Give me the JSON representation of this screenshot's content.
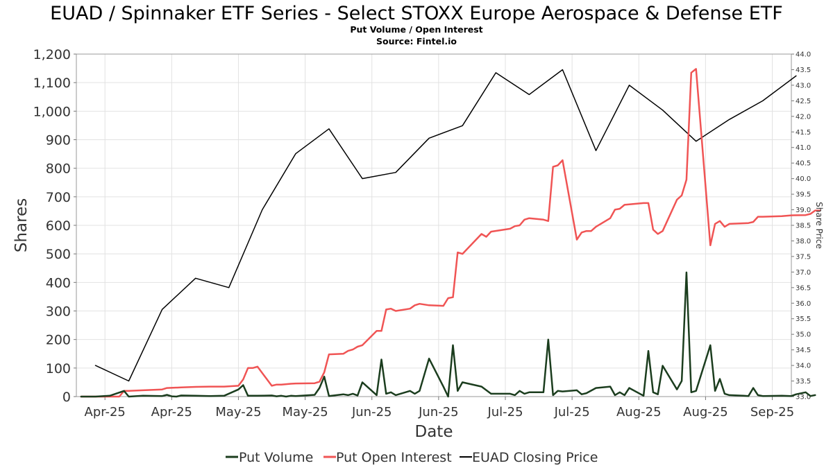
{
  "chart_data": {
    "type": "line",
    "title": "EUAD / Spinnaker ETF Series - Select STOXX Europe Aerospace & Defense ETF",
    "subtitle": "Put Volume / Open Interest",
    "source": "Source: Fintel.io",
    "xlabel": "Date",
    "ylabel": "Shares",
    "y2label": "Share Price",
    "ylim": [
      0,
      1200
    ],
    "y2lim": [
      33.0,
      44.0
    ],
    "yticks": [
      "0",
      "100",
      "200",
      "300",
      "400",
      "500",
      "600",
      "700",
      "800",
      "900",
      "1,000",
      "1,100",
      "1,200"
    ],
    "y2ticks": [
      "33.0",
      "33.5",
      "34.0",
      "34.5",
      "35.0",
      "35.5",
      "36.0",
      "36.5",
      "37.0",
      "37.5",
      "38.0",
      "38.5",
      "39.0",
      "39.5",
      "40.0",
      "40.5",
      "41.0",
      "41.5",
      "42.0",
      "42.5",
      "43.0",
      "43.5",
      "44.0"
    ],
    "xticks": [
      {
        "label": "Apr-25",
        "date": "2025-04-06"
      },
      {
        "label": "Apr-25",
        "date": "2025-04-20"
      },
      {
        "label": "May-25",
        "date": "2025-05-04"
      },
      {
        "label": "May-25",
        "date": "2025-05-18"
      },
      {
        "label": "Jun-25",
        "date": "2025-06-01"
      },
      {
        "label": "Jun-25",
        "date": "2025-06-15"
      },
      {
        "label": "Jul-25",
        "date": "2025-06-29"
      },
      {
        "label": "Jul-25",
        "date": "2025-07-13"
      },
      {
        "label": "Aug-25",
        "date": "2025-07-27"
      },
      {
        "label": "Aug-25",
        "date": "2025-08-10"
      },
      {
        "label": "Sep-25",
        "date": "2025-08-24"
      }
    ],
    "xlim": [
      "2025-03-31",
      "2025-08-28"
    ],
    "grid": true,
    "legend_position": "bottom",
    "series": [
      {
        "name": "Put Volume",
        "color": "#1b3d1e",
        "axis": "left",
        "points": [
          [
            "2025-04-01",
            0
          ],
          [
            "2025-04-04",
            0
          ],
          [
            "2025-04-07",
            3
          ],
          [
            "2025-04-10",
            20
          ],
          [
            "2025-04-11",
            0
          ],
          [
            "2025-04-14",
            3
          ],
          [
            "2025-04-18",
            2
          ],
          [
            "2025-04-19",
            6
          ],
          [
            "2025-04-20",
            1
          ],
          [
            "2025-04-21",
            0
          ],
          [
            "2025-04-22",
            4
          ],
          [
            "2025-04-25",
            3
          ],
          [
            "2025-04-28",
            2
          ],
          [
            "2025-05-01",
            3
          ],
          [
            "2025-05-04",
            25
          ],
          [
            "2025-05-05",
            40
          ],
          [
            "2025-05-06",
            3
          ],
          [
            "2025-05-08",
            3
          ],
          [
            "2025-05-11",
            4
          ],
          [
            "2025-05-12",
            1
          ],
          [
            "2025-05-13",
            3
          ],
          [
            "2025-05-14",
            0
          ],
          [
            "2025-05-15",
            3
          ],
          [
            "2025-05-16",
            2
          ],
          [
            "2025-05-20",
            6
          ],
          [
            "2025-05-21",
            30
          ],
          [
            "2025-05-22",
            70
          ],
          [
            "2025-05-23",
            2
          ],
          [
            "2025-05-26",
            8
          ],
          [
            "2025-05-27",
            5
          ],
          [
            "2025-05-28",
            10
          ],
          [
            "2025-05-29",
            4
          ],
          [
            "2025-05-30",
            50
          ],
          [
            "2025-06-02",
            5
          ],
          [
            "2025-06-03",
            130
          ],
          [
            "2025-06-04",
            10
          ],
          [
            "2025-06-05",
            15
          ],
          [
            "2025-06-06",
            5
          ],
          [
            "2025-06-09",
            20
          ],
          [
            "2025-06-10",
            10
          ],
          [
            "2025-06-11",
            20
          ],
          [
            "2025-06-13",
            133
          ],
          [
            "2025-06-16",
            35
          ],
          [
            "2025-06-17",
            0
          ],
          [
            "2025-06-18",
            180
          ],
          [
            "2025-06-19",
            20
          ],
          [
            "2025-06-20",
            50
          ],
          [
            "2025-06-24",
            35
          ],
          [
            "2025-06-26",
            10
          ],
          [
            "2025-06-30",
            10
          ],
          [
            "2025-07-01",
            5
          ],
          [
            "2025-07-02",
            20
          ],
          [
            "2025-07-03",
            10
          ],
          [
            "2025-07-04",
            15
          ],
          [
            "2025-07-07",
            15
          ],
          [
            "2025-07-08",
            200
          ],
          [
            "2025-07-09",
            5
          ],
          [
            "2025-07-10",
            20
          ],
          [
            "2025-07-11",
            18
          ],
          [
            "2025-07-14",
            22
          ],
          [
            "2025-07-15",
            8
          ],
          [
            "2025-07-16",
            12
          ],
          [
            "2025-07-18",
            30
          ],
          [
            "2025-07-21",
            35
          ],
          [
            "2025-07-22",
            5
          ],
          [
            "2025-07-23",
            15
          ],
          [
            "2025-07-24",
            5
          ],
          [
            "2025-07-25",
            30
          ],
          [
            "2025-07-28",
            3
          ],
          [
            "2025-07-29",
            160
          ],
          [
            "2025-07-30",
            15
          ],
          [
            "2025-07-31",
            8
          ],
          [
            "2025-08-01",
            108
          ],
          [
            "2025-08-04",
            25
          ],
          [
            "2025-08-05",
            55
          ],
          [
            "2025-08-06",
            435
          ],
          [
            "2025-08-07",
            15
          ],
          [
            "2025-08-08",
            20
          ],
          [
            "2025-08-11",
            180
          ],
          [
            "2025-08-12",
            20
          ],
          [
            "2025-08-13",
            62
          ],
          [
            "2025-08-14",
            10
          ],
          [
            "2025-08-15",
            5
          ],
          [
            "2025-08-18",
            3
          ],
          [
            "2025-08-19",
            2
          ],
          [
            "2025-08-20",
            30
          ],
          [
            "2025-08-21",
            5
          ],
          [
            "2025-08-22",
            2
          ],
          [
            "2025-08-26",
            3
          ],
          [
            "2025-08-28",
            2
          ],
          [
            "2025-08-29",
            8
          ],
          [
            "2025-08-31",
            15
          ],
          [
            "2025-09-01",
            2
          ],
          [
            "2025-09-02",
            5
          ]
        ]
      },
      {
        "name": "Put Open Interest",
        "color": "#f05454",
        "axis": "left",
        "points": [
          [
            "2025-04-01",
            0
          ],
          [
            "2025-04-09",
            0
          ],
          [
            "2025-04-10",
            20
          ],
          [
            "2025-04-11",
            20
          ],
          [
            "2025-04-14",
            22
          ],
          [
            "2025-04-18",
            25
          ],
          [
            "2025-04-19",
            30
          ],
          [
            "2025-04-22",
            32
          ],
          [
            "2025-04-25",
            34
          ],
          [
            "2025-04-28",
            35
          ],
          [
            "2025-05-01",
            35
          ],
          [
            "2025-05-04",
            38
          ],
          [
            "2025-05-05",
            60
          ],
          [
            "2025-05-06",
            100
          ],
          [
            "2025-05-07",
            100
          ],
          [
            "2025-05-08",
            105
          ],
          [
            "2025-05-11",
            38
          ],
          [
            "2025-05-12",
            42
          ],
          [
            "2025-05-13",
            42
          ],
          [
            "2025-05-15",
            45
          ],
          [
            "2025-05-16",
            46
          ],
          [
            "2025-05-20",
            47
          ],
          [
            "2025-05-21",
            52
          ],
          [
            "2025-05-22",
            85
          ],
          [
            "2025-05-23",
            148
          ],
          [
            "2025-05-26",
            150
          ],
          [
            "2025-05-27",
            160
          ],
          [
            "2025-05-28",
            165
          ],
          [
            "2025-05-29",
            175
          ],
          [
            "2025-05-30",
            180
          ],
          [
            "2025-06-02",
            230
          ],
          [
            "2025-06-03",
            230
          ],
          [
            "2025-06-04",
            305
          ],
          [
            "2025-06-05",
            308
          ],
          [
            "2025-06-06",
            300
          ],
          [
            "2025-06-09",
            308
          ],
          [
            "2025-06-10",
            320
          ],
          [
            "2025-06-11",
            325
          ],
          [
            "2025-06-13",
            320
          ],
          [
            "2025-06-16",
            318
          ],
          [
            "2025-06-17",
            345
          ],
          [
            "2025-06-18",
            348
          ],
          [
            "2025-06-19",
            505
          ],
          [
            "2025-06-20",
            500
          ],
          [
            "2025-06-24",
            570
          ],
          [
            "2025-06-25",
            560
          ],
          [
            "2025-06-26",
            578
          ],
          [
            "2025-06-30",
            588
          ],
          [
            "2025-07-01",
            597
          ],
          [
            "2025-07-02",
            600
          ],
          [
            "2025-07-03",
            620
          ],
          [
            "2025-07-04",
            625
          ],
          [
            "2025-07-07",
            620
          ],
          [
            "2025-07-08",
            615
          ],
          [
            "2025-07-09",
            805
          ],
          [
            "2025-07-10",
            810
          ],
          [
            "2025-07-11",
            828
          ],
          [
            "2025-07-14",
            550
          ],
          [
            "2025-07-15",
            575
          ],
          [
            "2025-07-16",
            580
          ],
          [
            "2025-07-17",
            580
          ],
          [
            "2025-07-18",
            595
          ],
          [
            "2025-07-21",
            625
          ],
          [
            "2025-07-22",
            655
          ],
          [
            "2025-07-23",
            658
          ],
          [
            "2025-07-24",
            672
          ],
          [
            "2025-07-28",
            678
          ],
          [
            "2025-07-29",
            678
          ],
          [
            "2025-07-30",
            585
          ],
          [
            "2025-07-31",
            570
          ],
          [
            "2025-08-01",
            580
          ],
          [
            "2025-08-04",
            690
          ],
          [
            "2025-08-05",
            705
          ],
          [
            "2025-08-06",
            760
          ],
          [
            "2025-08-07",
            1135
          ],
          [
            "2025-08-08",
            1148
          ],
          [
            "2025-08-11",
            530
          ],
          [
            "2025-08-12",
            605
          ],
          [
            "2025-08-13",
            615
          ],
          [
            "2025-08-14",
            595
          ],
          [
            "2025-08-15",
            605
          ],
          [
            "2025-08-19",
            608
          ],
          [
            "2025-08-20",
            612
          ],
          [
            "2025-08-21",
            630
          ],
          [
            "2025-08-22",
            630
          ],
          [
            "2025-08-26",
            632
          ],
          [
            "2025-08-28",
            635
          ],
          [
            "2025-08-31",
            636
          ],
          [
            "2025-09-01",
            640
          ],
          [
            "2025-09-02",
            652
          ],
          [
            "2025-09-03",
            652
          ]
        ]
      },
      {
        "name": "EUAD Closing Price",
        "color": "#000000",
        "axis": "right",
        "points": [
          [
            "2025-04-04",
            34.0
          ],
          [
            "2025-04-11",
            33.5
          ],
          [
            "2025-04-18",
            35.8
          ],
          [
            "2025-04-25",
            36.8
          ],
          [
            "2025-05-02",
            36.5
          ],
          [
            "2025-05-09",
            39.0
          ],
          [
            "2025-05-16",
            40.8
          ],
          [
            "2025-05-23",
            41.6
          ],
          [
            "2025-05-30",
            40.0
          ],
          [
            "2025-06-06",
            40.2
          ],
          [
            "2025-06-13",
            41.3
          ],
          [
            "2025-06-20",
            41.7
          ],
          [
            "2025-06-27",
            43.4
          ],
          [
            "2025-07-04",
            42.7
          ],
          [
            "2025-07-11",
            43.5
          ],
          [
            "2025-07-18",
            40.9
          ],
          [
            "2025-07-25",
            43.0
          ],
          [
            "2025-08-01",
            42.2
          ],
          [
            "2025-08-08",
            41.2
          ],
          [
            "2025-08-15",
            41.9
          ],
          [
            "2025-08-22",
            42.5
          ],
          [
            "2025-08-29",
            43.3
          ]
        ]
      }
    ]
  }
}
